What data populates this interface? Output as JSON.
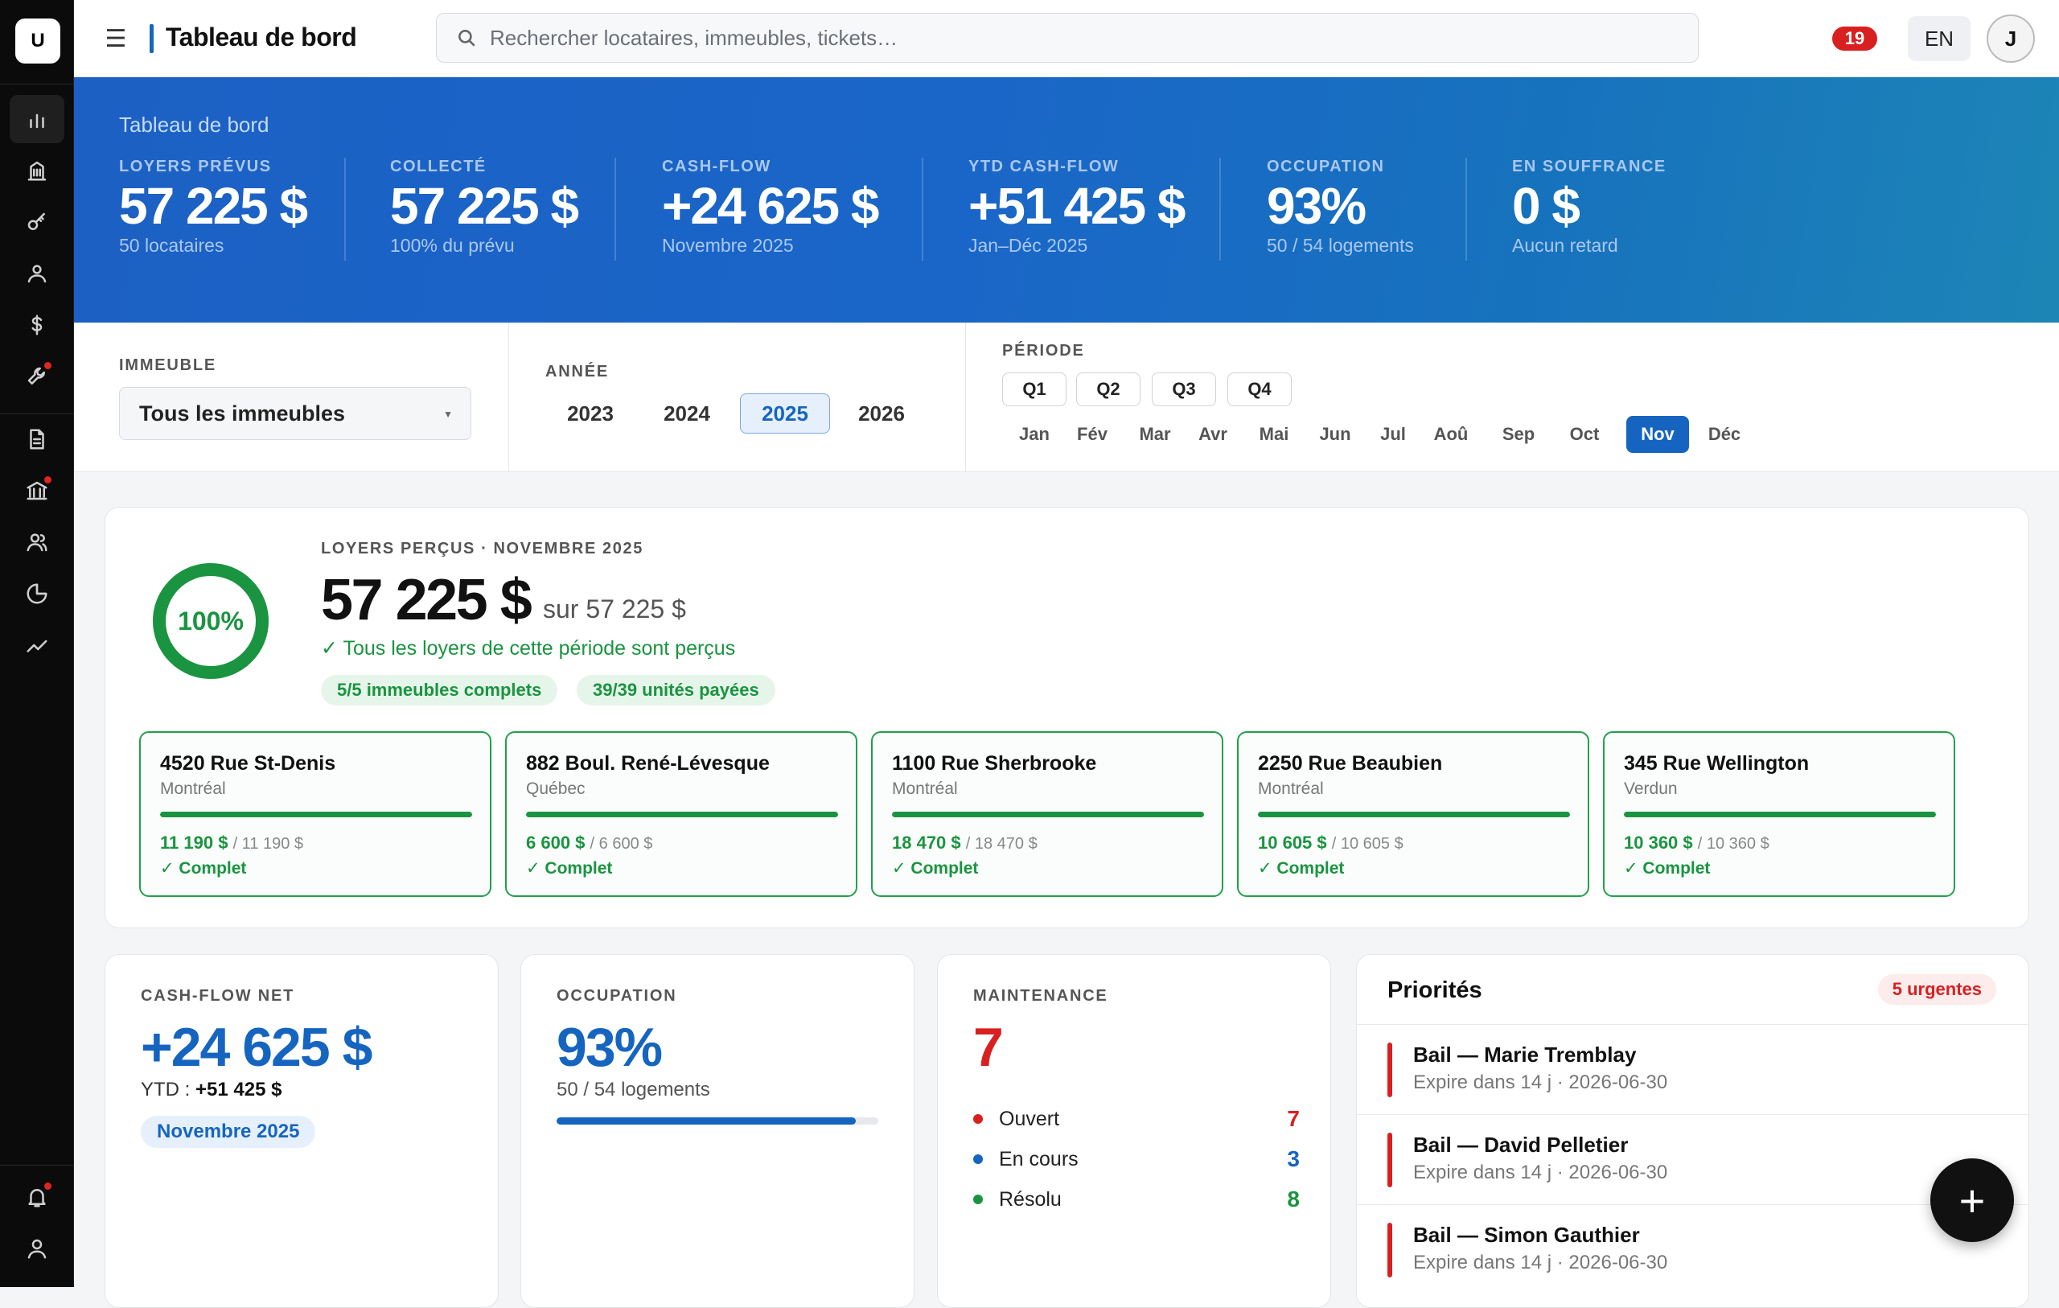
{
  "sidebar": {
    "logo": "U",
    "items": [
      {
        "icon": "bar-chart-icon",
        "active": true
      },
      {
        "icon": "building-icon"
      },
      {
        "icon": "key-icon"
      },
      {
        "icon": "users-icon"
      },
      {
        "icon": "dollar-icon"
      },
      {
        "icon": "wrench-icon",
        "alert": true
      },
      {
        "icon": "document-icon"
      },
      {
        "icon": "bank-icon",
        "alert": true
      },
      {
        "icon": "people-icon"
      },
      {
        "icon": "pie-chart-icon"
      },
      {
        "icon": "trend-icon"
      }
    ],
    "bottom": [
      {
        "icon": "bell-icon",
        "alert": true
      },
      {
        "icon": "user-icon"
      }
    ]
  },
  "topbar": {
    "menu_icon": "☰",
    "title": "Tableau de bord",
    "search_placeholder": "Rechercher locataires, immeubles, tickets…",
    "notifications": "19",
    "lang": "EN",
    "avatar": "J"
  },
  "hero": {
    "title": "Tableau de bord",
    "kpis": [
      {
        "label": "LOYERS PRÉVUS",
        "value": "57 225 $",
        "sub": "50 locataires"
      },
      {
        "label": "COLLECTÉ",
        "value": "57 225 $",
        "sub": "100% du prévu"
      },
      {
        "label": "CASH-FLOW",
        "value": "+24 625 $",
        "sub": "Novembre 2025"
      },
      {
        "label": "YTD CASH-FLOW",
        "value": "+51 425 $",
        "sub": "Jan–Déc 2025"
      },
      {
        "label": "OCCUPATION",
        "value": "93%",
        "sub": "50 / 54 logements"
      },
      {
        "label": "EN SOUFFRANCE",
        "value": "0 $",
        "sub": "Aucun retard"
      }
    ]
  },
  "filters": {
    "building_label": "IMMEUBLE",
    "building_value": "Tous les immeubles",
    "year_label": "ANNÉE",
    "years": [
      "2023",
      "2024",
      "2025",
      "2026"
    ],
    "year_selected": "2025",
    "period_label": "PÉRIODE",
    "quarters": [
      "Q1",
      "Q2",
      "Q3",
      "Q4"
    ],
    "months": [
      "Jan",
      "Fév",
      "Mar",
      "Avr",
      "Mai",
      "Jun",
      "Jul",
      "Aoû",
      "Sep",
      "Oct",
      "Nov",
      "Déc"
    ],
    "month_selected": "Nov"
  },
  "rent": {
    "percent": "100%",
    "percent_value": 1.0,
    "label": "LOYERS PERÇUS · NOVEMBRE 2025",
    "amount": "57 225 $",
    "of": "sur 57 225 $",
    "status": "✓ Tous les loyers de cette période sont perçus",
    "pills": [
      "5/5 immeubles complets",
      "39/39 unités payées"
    ],
    "buildings": [
      {
        "name": "4520 Rue St-Denis",
        "city": "Montréal",
        "paid": "11 190 $",
        "total": "/ 11 190 $",
        "ratio": 1.0,
        "status": "✓ Complet"
      },
      {
        "name": "882 Boul. René-Lévesque",
        "city": "Québec",
        "paid": "6 600 $",
        "total": "/ 6 600 $",
        "ratio": 1.0,
        "status": "✓ Complet"
      },
      {
        "name": "1100 Rue Sherbrooke",
        "city": "Montréal",
        "paid": "18 470 $",
        "total": "/ 18 470 $",
        "ratio": 1.0,
        "status": "✓ Complet"
      },
      {
        "name": "2250 Rue Beaubien",
        "city": "Montréal",
        "paid": "10 605 $",
        "total": "/ 10 605 $",
        "ratio": 1.0,
        "status": "✓ Complet"
      },
      {
        "name": "345 Rue Wellington",
        "city": "Verdun",
        "paid": "10 360 $",
        "total": "/ 10 360 $",
        "ratio": 1.0,
        "status": "✓ Complet"
      }
    ]
  },
  "cashflow": {
    "label": "CASH-FLOW NET",
    "value": "+24 625 $",
    "ytd_label": "YTD :",
    "ytd_value": "+51 425 $",
    "period": "Novembre 2025"
  },
  "occupation": {
    "label": "OCCUPATION",
    "value": "93%",
    "sub": "50 / 54 logements",
    "ratio": 0.93
  },
  "maintenance": {
    "label": "MAINTENANCE",
    "total": "7",
    "rows": [
      {
        "name": "Ouvert",
        "count": "7",
        "color": "#d92020"
      },
      {
        "name": "En cours",
        "count": "3",
        "color": "#1565c0"
      },
      {
        "name": "Résolu",
        "count": "8",
        "color": "#1a9440"
      }
    ]
  },
  "priorities": {
    "title": "Priorités",
    "badge": "5 urgentes",
    "items": [
      {
        "title": "Bail — Marie Tremblay",
        "sub": "Expire dans 14 j · 2026-06-30"
      },
      {
        "title": "Bail — David Pelletier",
        "sub": "Expire dans 14 j · 2026-06-30"
      },
      {
        "title": "Bail — Simon Gauthier",
        "sub": "Expire dans 14 j · 2026-06-30"
      }
    ]
  },
  "fab": "+"
}
